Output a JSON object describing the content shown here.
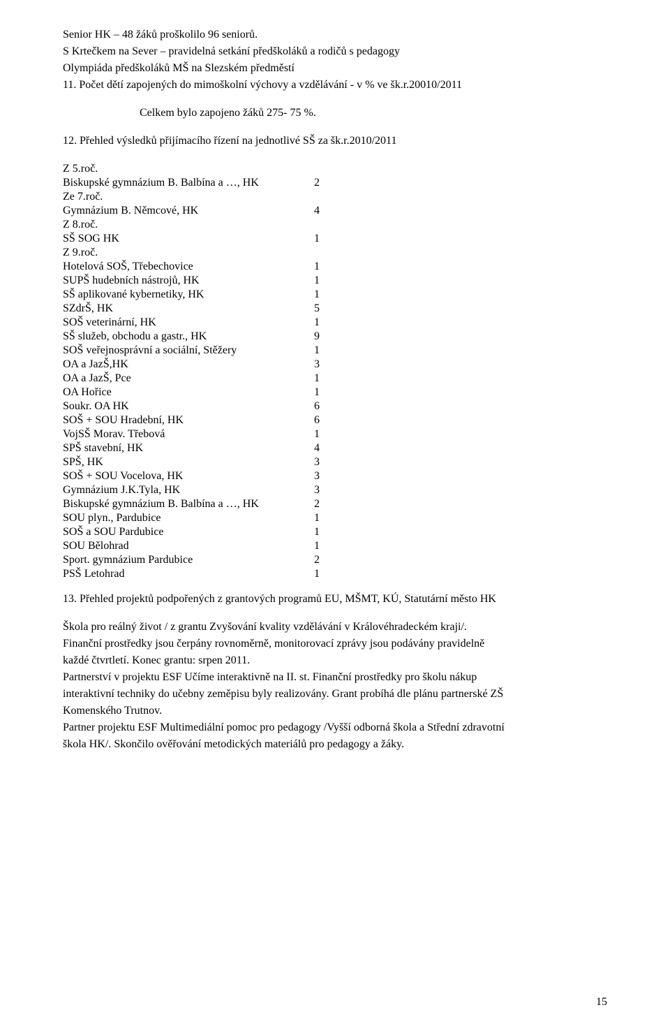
{
  "intro": {
    "l1": "Senior HK – 48 žáků proškolilo 96 seniorů.",
    "l2": "S Krtečkem na Sever – pravidelná setkání předškoláků a rodičů s pedagogy",
    "l3": "Olympiáda předškoláků MŠ na Slezském předměstí",
    "l4": "11. Počet dětí zapojených do mimoškolní výchovy a vzdělávání - v % ve šk.r.20010/2011",
    "l5": "Celkem bylo zapojeno  žáků  275-  75 %.",
    "l6": "12. Přehled výsledků přijímacího řízení na jednotlivé SŠ za šk.r.2010/2011"
  },
  "schools": [
    {
      "label": "Z 5.roč.",
      "value": ""
    },
    {
      "label": "Biskupské gymnázium B. Balbína a …, HK",
      "value": "2"
    },
    {
      "label": "Ze 7.roč.",
      "value": ""
    },
    {
      "label": "Gymnázium B. Němcové, HK",
      "value": "4"
    },
    {
      "label": "Z 8.roč.",
      "value": ""
    },
    {
      "label": "SŠ SOG HK",
      "value": "1"
    },
    {
      "label": "Z 9.roč.",
      "value": ""
    },
    {
      "label": "Hotelová SOŠ, Třebechovice",
      "value": "1"
    },
    {
      "label": "SUPŠ hudebních nástrojů, HK",
      "value": "1"
    },
    {
      "label": "SŠ aplikované kybernetiky, HK",
      "value": "1"
    },
    {
      "label": "SZdrŠ, HK",
      "value": "5"
    },
    {
      "label": "SOŠ veterinární, HK",
      "value": "1"
    },
    {
      "label": "SŠ služeb, obchodu a gastr., HK",
      "value": "9"
    },
    {
      "label": "SOŠ veřejnosprávní a sociální, Stěžery",
      "value": "1"
    },
    {
      "label": "OA a JazŠ,HK",
      "value": "3"
    },
    {
      "label": "OA a JazŠ, Pce",
      "value": "1"
    },
    {
      "label": "OA Hořice",
      "value": "1"
    },
    {
      "label": "Soukr. OA HK",
      "value": "6"
    },
    {
      "label": "SOŠ + SOU Hradební, HK",
      "value": "6"
    },
    {
      "label": "VojSŠ Morav. Třebová",
      "value": "1"
    },
    {
      "label": "SPŠ stavební, HK",
      "value": "4"
    },
    {
      "label": "SPŠ, HK",
      "value": "3"
    },
    {
      "label": "SOŠ + SOU Vocelova, HK",
      "value": "3"
    },
    {
      "label": "Gymnázium J.K.Tyla, HK",
      "value": "3"
    },
    {
      "label": "Biskupské gymnázium B. Balbína a …, HK",
      "value": "2"
    },
    {
      "label": "SOU plyn., Pardubice",
      "value": "1"
    },
    {
      "label": "SOŠ a SOU Pardubice",
      "value": "1"
    },
    {
      "label": "SOU Bělohrad",
      "value": "1"
    },
    {
      "label": "Sport. gymnázium Pardubice",
      "value": "2"
    },
    {
      "label": "PSŠ Letohrad",
      "value": "1"
    }
  ],
  "section13_title": "13. Přehled projektů podpořených z grantových programů EU, MŠMT, KÚ, Statutární město HK",
  "closing": {
    "l1": "Škola pro reálný život / z grantu Zvyšování kvality vzdělávání v Královéhradeckém kraji/.",
    "l2": "Finanční prostředky jsou čerpány rovnoměrně, monitorovací zprávy jsou podávány pravidelně",
    "l3": "každé čtvrtletí. Konec grantu: srpen 2011.",
    "l4": "Partnerství v projektu ESF Učíme interaktivně na II. st.  Finanční prostředky pro školu nákup",
    "l5": "interaktivní techniky do učebny zeměpisu byly realizovány. Grant probíhá dle plánu partnerské ZŠ",
    "l6": "Komenského Trutnov.",
    "l7": "Partner projektu ESF Multimediální pomoc pro pedagogy /Vyšší odborná škola a Střední zdravotní",
    "l8": "škola HK/.  Skončilo ověřování metodických materiálů pro pedagogy a žáky."
  },
  "page_number": "15"
}
